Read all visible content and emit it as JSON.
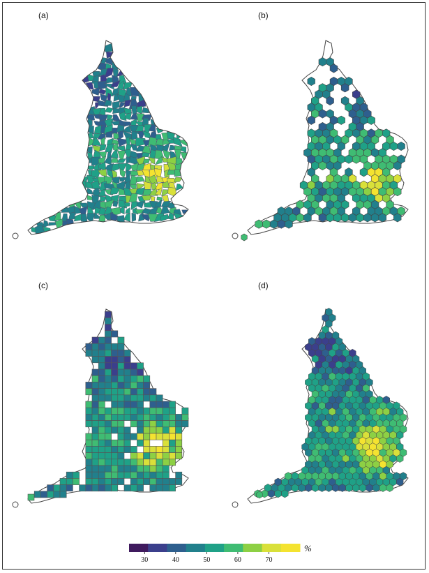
{
  "panels": [
    {
      "label": "(a)",
      "style": "polygons"
    },
    {
      "label": "(b)",
      "style": "hexagons-sparse"
    },
    {
      "label": "(c)",
      "style": "squares"
    },
    {
      "label": "(d)",
      "style": "hexagons-full"
    }
  ],
  "legend": {
    "ticks": [
      "30",
      "40",
      "50",
      "60",
      "70"
    ],
    "unit": "%",
    "colors": [
      "#3f1a5e",
      "#3b3f8c",
      "#2e5f8e",
      "#21808c",
      "#1fa187",
      "#3fbc73",
      "#8dd044",
      "#d9e03a",
      "#f4e330"
    ]
  },
  "colors": {
    "outline": "#444444",
    "cell_border": "#555555"
  }
}
